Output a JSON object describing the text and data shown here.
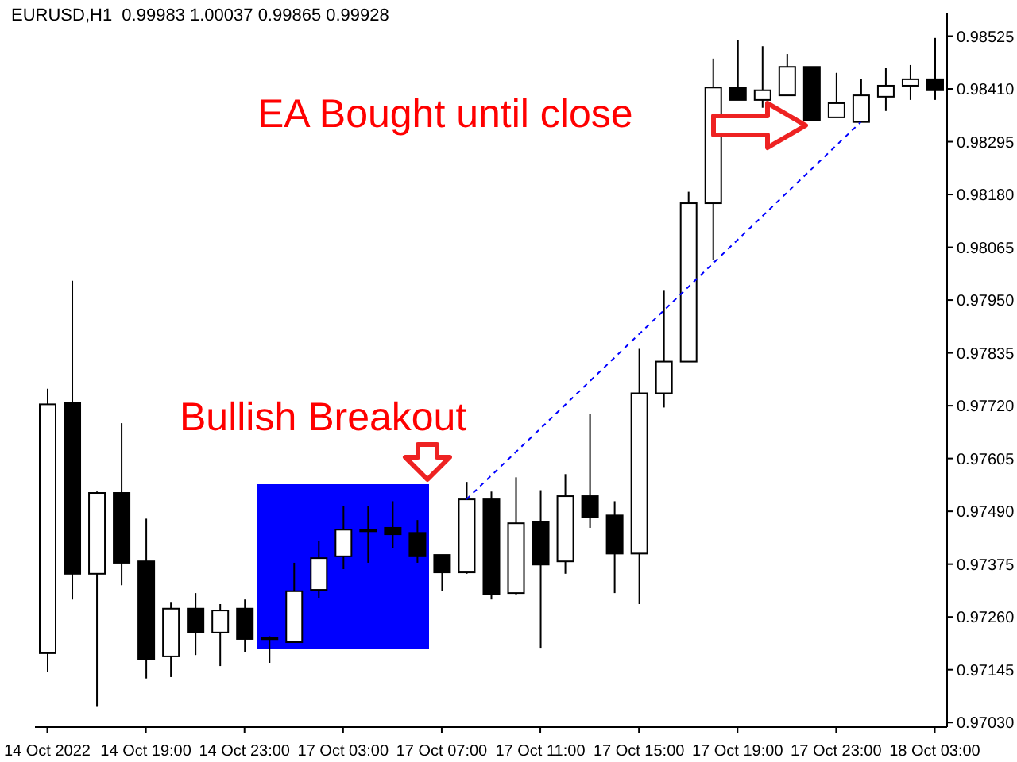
{
  "chart_data": {
    "type": "candlestick",
    "title": "EURUSD,H1  0.99983 1.00037 0.99865 0.99928",
    "categories": [
      "14 Oct 2022",
      null,
      null,
      null,
      "14 Oct 19:00",
      null,
      null,
      null,
      "14 Oct 23:00",
      null,
      null,
      null,
      "17 Oct 03:00",
      null,
      null,
      null,
      "17 Oct 07:00",
      null,
      null,
      null,
      "17 Oct 11:00",
      null,
      null,
      null,
      "17 Oct 15:00",
      null,
      null,
      null,
      "17 Oct 19:00",
      null,
      null,
      null,
      "17 Oct 23:00",
      null,
      null,
      null,
      "18 Oct 03:00"
    ],
    "ohlc": [
      [
        0.97181,
        0.97757,
        0.9714,
        0.97723
      ],
      [
        0.97726,
        0.97992,
        0.97298,
        0.97354
      ],
      [
        0.97354,
        0.97533,
        0.97064,
        0.9753
      ],
      [
        0.9753,
        0.97682,
        0.97329,
        0.97378
      ],
      [
        0.97381,
        0.97474,
        0.97126,
        0.97167
      ],
      [
        0.97174,
        0.97291,
        0.97129,
        0.97278
      ],
      [
        0.97278,
        0.97312,
        0.97177,
        0.97226
      ],
      [
        0.97226,
        0.97288,
        0.97153,
        0.97274
      ],
      [
        0.97278,
        0.97298,
        0.97184,
        0.97212
      ],
      [
        0.97212,
        0.97218,
        0.9716,
        0.97215
      ],
      [
        0.97205,
        0.97378,
        0.97205,
        0.97316
      ],
      [
        0.97319,
        0.97426,
        0.97301,
        0.97388
      ],
      [
        0.97392,
        0.97502,
        0.97364,
        0.9745
      ],
      [
        0.9745,
        0.97502,
        0.97378,
        0.97447
      ],
      [
        0.97454,
        0.97512,
        0.97409,
        0.9744
      ],
      [
        0.97443,
        0.97471,
        0.97378,
        0.97392
      ],
      [
        0.97395,
        0.97395,
        0.97316,
        0.97357
      ],
      [
        0.97357,
        0.97554,
        0.97354,
        0.97516
      ],
      [
        0.97516,
        0.97533,
        0.97298,
        0.97309
      ],
      [
        0.97312,
        0.97564,
        0.97309,
        0.97464
      ],
      [
        0.97467,
        0.97536,
        0.97191,
        0.97374
      ],
      [
        0.97381,
        0.97571,
        0.97354,
        0.97523
      ],
      [
        0.97523,
        0.97702,
        0.97454,
        0.97478
      ],
      [
        0.97481,
        0.97512,
        0.97312,
        0.97398
      ],
      [
        0.97398,
        0.97844,
        0.97288,
        0.97747
      ],
      [
        0.97747,
        0.97972,
        0.97716,
        0.97816
      ],
      [
        0.97816,
        0.98186,
        0.97816,
        0.98161
      ],
      [
        0.98161,
        0.98476,
        0.98037,
        0.98413
      ],
      [
        0.98413,
        0.98517,
        0.98386,
        0.98386
      ],
      [
        0.98386,
        0.98503,
        0.98369,
        0.98407
      ],
      [
        0.98396,
        0.98486,
        0.98396,
        0.98458
      ],
      [
        0.98458,
        0.98458,
        0.98341,
        0.98341
      ],
      [
        0.98348,
        0.98445,
        0.98348,
        0.98379
      ],
      [
        0.98338,
        0.98431,
        0.98338,
        0.98396
      ],
      [
        0.98393,
        0.98455,
        0.98362,
        0.98417
      ],
      [
        0.98417,
        0.98462,
        0.98386,
        0.98431
      ],
      [
        0.98431,
        0.98521,
        0.98386,
        0.98407
      ]
    ],
    "series": [
      {
        "type": "line",
        "color": "#0000ff",
        "line_style": "dashed",
        "values": [
          null,
          null,
          null,
          null,
          null,
          null,
          null,
          null,
          null,
          null,
          null,
          null,
          null,
          null,
          null,
          null,
          null,
          0.97516,
          null,
          null,
          null,
          null,
          null,
          null,
          null,
          null,
          null,
          null,
          null,
          null,
          null,
          null,
          null,
          0.98338,
          null,
          null,
          null
        ]
      }
    ],
    "ylim": [
      0.9702,
      0.98576
    ],
    "yticks": [
      {
        "value": 0.9703,
        "label": "0.97030"
      },
      {
        "value": 0.97145,
        "label": "0.97145"
      },
      {
        "value": 0.9726,
        "label": "0.97260"
      },
      {
        "value": 0.97375,
        "label": "0.97375"
      },
      {
        "value": 0.9749,
        "label": "0.97490"
      },
      {
        "value": 0.97605,
        "label": "0.97605"
      },
      {
        "value": 0.9772,
        "label": "0.97720"
      },
      {
        "value": 0.97835,
        "label": "0.97835"
      },
      {
        "value": 0.9795,
        "label": "0.97950"
      },
      {
        "value": 0.98065,
        "label": "0.98065"
      },
      {
        "value": 0.9818,
        "label": "0.98180"
      },
      {
        "value": 0.98295,
        "label": "0.98295"
      },
      {
        "value": 0.9841,
        "label": "0.98410"
      },
      {
        "value": 0.98525,
        "label": "0.98525"
      }
    ],
    "annotations": [
      "EA Bought until close",
      "Bullish Breakout"
    ]
  }
}
